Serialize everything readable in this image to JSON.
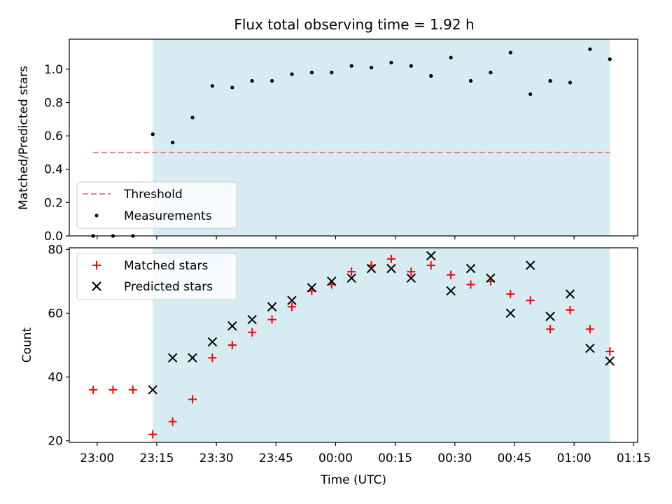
{
  "title": "Flux total observing time = 1.92 h",
  "xlabel": "Time (UTC)",
  "x_ticks": [
    "23:00",
    "23:15",
    "23:30",
    "23:45",
    "00:00",
    "00:15",
    "00:30",
    "00:45",
    "01:00",
    "01:15"
  ],
  "colors": {
    "shade": "#add8e6",
    "threshold": "#f08080",
    "measurements": "#000000",
    "matched": "#ff0000",
    "predicted": "#000000"
  },
  "chart_data": [
    {
      "type": "scatter",
      "ylabel": "Matched/Predicted stars",
      "ylim": [
        0.0,
        1.18
      ],
      "y_ticks": [
        "0.0",
        "0.2",
        "0.4",
        "0.6",
        "0.8",
        "1.0"
      ],
      "xlim": [
        "22:53",
        "01:16"
      ],
      "shaded_x_range": [
        "23:14",
        "01:09"
      ],
      "threshold": {
        "name": "Threshold",
        "value": 0.5,
        "x_range": [
          "22:59",
          "01:09"
        ],
        "style": "dashed"
      },
      "legend": {
        "placement": "lower-left",
        "entries": [
          "Threshold",
          "Measurements"
        ]
      },
      "series": [
        {
          "name": "Measurements",
          "marker": "dot",
          "x": [
            "22:59",
            "23:04",
            "23:09",
            "23:14",
            "23:19",
            "23:24",
            "23:29",
            "23:34",
            "23:39",
            "23:44",
            "23:49",
            "23:54",
            "23:59",
            "00:04",
            "00:09",
            "00:14",
            "00:19",
            "00:24",
            "00:29",
            "00:34",
            "00:39",
            "00:44",
            "00:49",
            "00:54",
            "00:59",
            "01:04",
            "01:09"
          ],
          "y": [
            0.0,
            0.0,
            0.0,
            0.61,
            0.56,
            0.71,
            0.9,
            0.89,
            0.93,
            0.93,
            0.97,
            0.98,
            0.98,
            1.02,
            1.01,
            1.04,
            1.02,
            0.96,
            1.07,
            0.93,
            0.98,
            1.1,
            0.85,
            0.93,
            0.92,
            1.12,
            1.06
          ]
        }
      ]
    },
    {
      "type": "scatter",
      "ylabel": "Count",
      "ylim": [
        19.5,
        80.5
      ],
      "y_ticks": [
        "20",
        "40",
        "60",
        "80"
      ],
      "xlim": [
        "22:53",
        "01:16"
      ],
      "shaded_x_range": [
        "23:14",
        "01:09"
      ],
      "legend": {
        "placement": "top-left",
        "entries": [
          "Matched stars",
          "Predicted stars"
        ]
      },
      "series": [
        {
          "name": "Matched stars",
          "marker": "plus",
          "x": [
            "22:59",
            "23:04",
            "23:09",
            "23:14",
            "23:19",
            "23:24",
            "23:29",
            "23:34",
            "23:39",
            "23:44",
            "23:49",
            "23:54",
            "23:59",
            "00:04",
            "00:09",
            "00:14",
            "00:19",
            "00:24",
            "00:29",
            "00:34",
            "00:39",
            "00:44",
            "00:49",
            "00:54",
            "00:59",
            "01:04",
            "01:09"
          ],
          "y": [
            36,
            36,
            36,
            22,
            26,
            33,
            46,
            50,
            54,
            58,
            62,
            67,
            69,
            73,
            75,
            77,
            73,
            75,
            72,
            69,
            70,
            66,
            64,
            55,
            61,
            55,
            48
          ]
        },
        {
          "name": "Predicted stars",
          "marker": "x",
          "x": [
            "23:14",
            "23:19",
            "23:24",
            "23:29",
            "23:34",
            "23:39",
            "23:44",
            "23:49",
            "23:54",
            "23:59",
            "00:04",
            "00:09",
            "00:14",
            "00:19",
            "00:24",
            "00:29",
            "00:34",
            "00:39",
            "00:44",
            "00:49",
            "00:54",
            "00:59",
            "01:04",
            "01:09"
          ],
          "y": [
            36,
            46,
            46,
            51,
            56,
            58,
            62,
            64,
            68,
            70,
            71,
            74,
            74,
            71,
            78,
            67,
            74,
            71,
            60,
            75,
            59,
            66,
            49,
            45
          ]
        }
      ]
    }
  ]
}
